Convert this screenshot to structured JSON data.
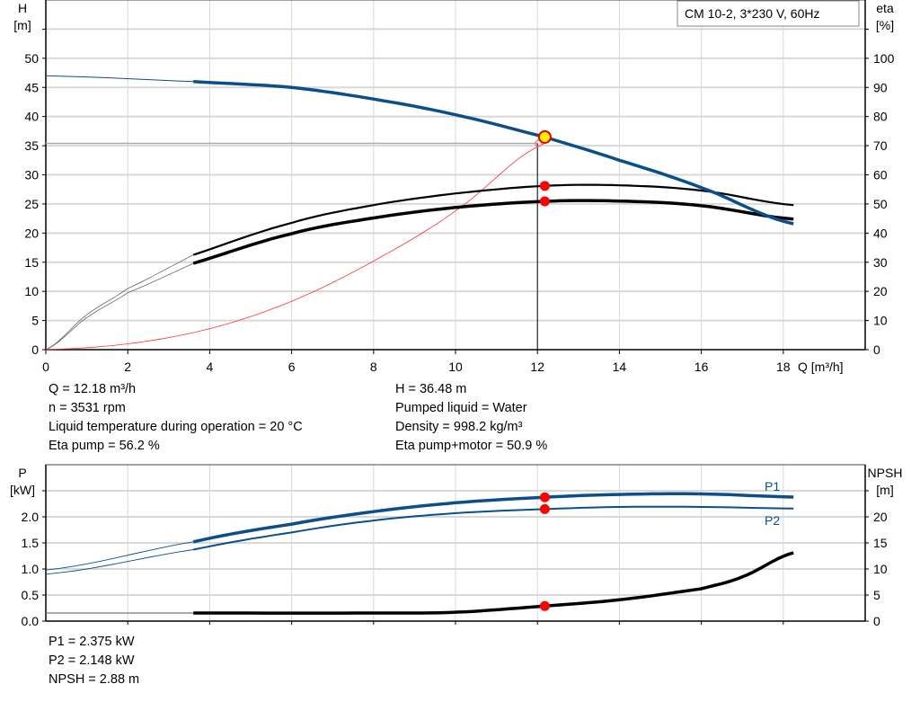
{
  "chart_data": [
    {
      "type": "line",
      "title": "CM 10-2, 3*230 V, 60Hz",
      "xlabel": "Q [m³/h]",
      "ylabel": "H",
      "ylabel_unit": "[m]",
      "y2label": "eta",
      "y2label_unit": "[%]",
      "xlim": [
        0,
        20
      ],
      "ylim": [
        0,
        60
      ],
      "y2lim": [
        0,
        120
      ],
      "xticks": [
        0,
        2,
        4,
        6,
        8,
        10,
        12,
        14,
        16,
        18
      ],
      "yticks": [
        0,
        5,
        10,
        15,
        20,
        25,
        30,
        35,
        40,
        45,
        50
      ],
      "y2ticks": [
        0,
        10,
        20,
        30,
        40,
        50,
        60,
        70,
        80,
        90,
        100
      ],
      "grid": true,
      "series": [
        {
          "key": "H",
          "axis": "left",
          "color": "#0b4f8a",
          "x": [
            0,
            3.6,
            6,
            8,
            10,
            12.18,
            14,
            16,
            18.25
          ],
          "y": [
            47,
            46,
            45,
            43,
            40.3,
            36.48,
            32.5,
            27.8,
            21.6
          ]
        },
        {
          "key": "eta_pump",
          "axis": "right",
          "color": "#000000",
          "x": [
            0,
            1,
            2,
            3.6,
            6,
            8,
            10,
            12.18,
            14,
            16,
            18.25
          ],
          "y": [
            0,
            12,
            21,
            32.5,
            43.5,
            49.6,
            53.6,
            56.2,
            56.4,
            54.6,
            49.6
          ]
        },
        {
          "key": "eta_pump_motor",
          "axis": "right",
          "color": "#000000",
          "x": [
            0,
            1,
            2,
            3.6,
            6,
            8,
            10,
            12.18,
            14,
            16,
            18.25
          ],
          "y": [
            0,
            11,
            19.5,
            29.6,
            39.8,
            45.2,
            48.8,
            50.9,
            51.0,
            49.4,
            44.8
          ]
        },
        {
          "key": "system",
          "axis": "left",
          "color": "#ff0000",
          "x": [
            0,
            2,
            4,
            6,
            8,
            10,
            12.18
          ],
          "y": [
            0,
            1.0,
            3.6,
            8.3,
            15.2,
            23.8,
            35.4
          ]
        }
      ],
      "operating_point": {
        "Q": 12.18,
        "H": 36.48,
        "eta_pump": 56.2,
        "eta_pump_motor": 50.9
      }
    },
    {
      "type": "line",
      "ylabel": "P",
      "ylabel_unit": "[kW]",
      "y2label": "NPSH",
      "y2label_unit": "[m]",
      "xlim": [
        0,
        20
      ],
      "ylim": [
        0,
        3
      ],
      "y2lim": [
        0,
        30
      ],
      "yticks": [
        0.0,
        0.5,
        1.0,
        1.5,
        2.0
      ],
      "y2ticks": [
        0,
        5,
        10,
        15,
        20
      ],
      "grid": true,
      "series": [
        {
          "name": "P1",
          "axis": "left",
          "color": "#0b4f8a",
          "x": [
            0,
            3.6,
            6,
            8,
            10,
            12.18,
            14,
            16,
            18.25
          ],
          "y": [
            0.98,
            1.52,
            1.86,
            2.1,
            2.27,
            2.375,
            2.43,
            2.44,
            2.38
          ]
        },
        {
          "name": "P2",
          "axis": "left",
          "color": "#0b4f8a",
          "x": [
            0,
            3.6,
            6,
            8,
            10,
            12.18,
            14,
            16,
            18.25
          ],
          "y": [
            0.9,
            1.37,
            1.7,
            1.93,
            2.07,
            2.148,
            2.19,
            2.19,
            2.16
          ]
        },
        {
          "key": "NPSH",
          "axis": "right",
          "color": "#000000",
          "x": [
            0,
            3.6,
            8,
            10,
            12.18,
            14,
            16,
            17,
            18.25
          ],
          "y": [
            1.55,
            1.55,
            1.55,
            1.7,
            2.88,
            4.1,
            6.2,
            8.5,
            13.1
          ]
        }
      ],
      "operating_point": {
        "Q": 12.18,
        "P1": 2.375,
        "P2": 2.148,
        "NPSH": 2.88
      }
    }
  ],
  "info_top_left": [
    "Q = 12.18 m³/h",
    "n = 3531 rpm",
    "Liquid temperature during operation = 20 °C",
    "Eta pump = 56.2 %"
  ],
  "info_top_right": [
    "H = 36.48 m",
    "Pumped liquid = Water",
    "Density = 998.2 kg/m³",
    "Eta pump+motor = 50.9 %"
  ],
  "info_bottom": [
    "P1 = 2.375 kW",
    "P2 = 2.148 kW",
    "NPSH = 2.88 m"
  ]
}
